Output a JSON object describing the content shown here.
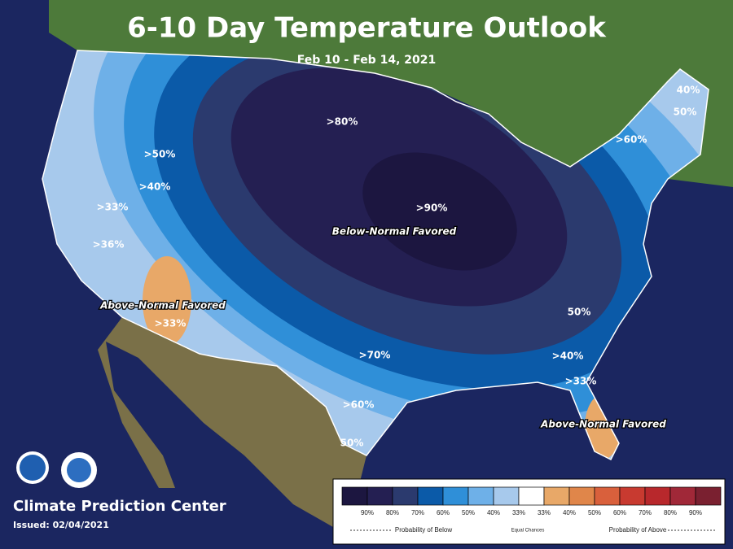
{
  "header": {
    "title": "6-10 Day Temperature Outlook",
    "subtitle": "Feb 10 - Feb 14, 2021"
  },
  "map_labels": [
    ">80%",
    ">90%",
    ">70%",
    ">60%",
    "50%",
    ">60%",
    "40%",
    "50%",
    "50%",
    ">40%",
    ">33%",
    ">33%",
    ">50%",
    ">40%",
    ">33%",
    ">36%"
  ],
  "regions": {
    "below": "Below-Normal Favored",
    "above_west": "Above-Normal Favored",
    "above_east": "Above-Normal Favored"
  },
  "footer": {
    "center": "Climate Prediction Center",
    "issued": "Issued: 02/04/2021"
  },
  "legend": {
    "colors": [
      "#1c1640",
      "#241f52",
      "#2b3a6e",
      "#0b5aa8",
      "#2f8fd8",
      "#6eb0e8",
      "#a7c9ec",
      "#ffffff",
      "#e8a868",
      "#e0864a",
      "#d9603c",
      "#c83a30",
      "#b8282c",
      "#a02838",
      "#7a2030"
    ],
    "labels": [
      "90%",
      "80%",
      "70%",
      "60%",
      "50%",
      "40%",
      "33%",
      "33%",
      "40%",
      "50%",
      "60%",
      "70%",
      "80%",
      "90%"
    ],
    "below": "Probability of Below",
    "equal": "Equal Chances",
    "above": "Probability of Above"
  }
}
